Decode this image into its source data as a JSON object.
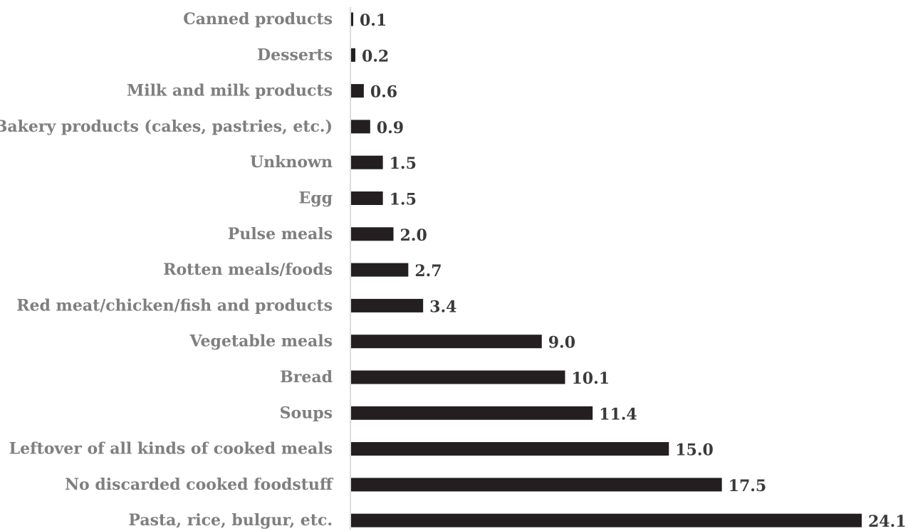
{
  "chart_data": {
    "type": "bar",
    "orientation": "horizontal",
    "categories": [
      "Canned products",
      "Desserts",
      "Milk and milk products",
      "Bakery products (cakes, pastries, etc.)",
      "Unknown",
      "Egg",
      "Pulse meals",
      "Rotten meals/foods",
      "Red meat/chicken/fish and products",
      "Vegetable meals",
      "Bread",
      "Soups",
      "Leftover of all kinds of cooked meals",
      "No discarded cooked foodstuff",
      "Pasta, rice, bulgur, etc."
    ],
    "values": [
      0.1,
      0.2,
      0.6,
      0.9,
      1.5,
      1.5,
      2.0,
      2.7,
      3.4,
      9.0,
      10.1,
      11.4,
      15.0,
      17.5,
      24.1
    ],
    "value_labels": [
      "0.1",
      "0.2",
      "0.6",
      "0.9",
      "1.5",
      "1.5",
      "2.0",
      "2.7",
      "3.4",
      "9.0",
      "10.1",
      "11.4",
      "15.0",
      "17.5",
      "24.1"
    ],
    "xlim": [
      0,
      24.1
    ],
    "grid": false,
    "bar_color": "#231f20",
    "label_color": "#7f7f7f"
  }
}
